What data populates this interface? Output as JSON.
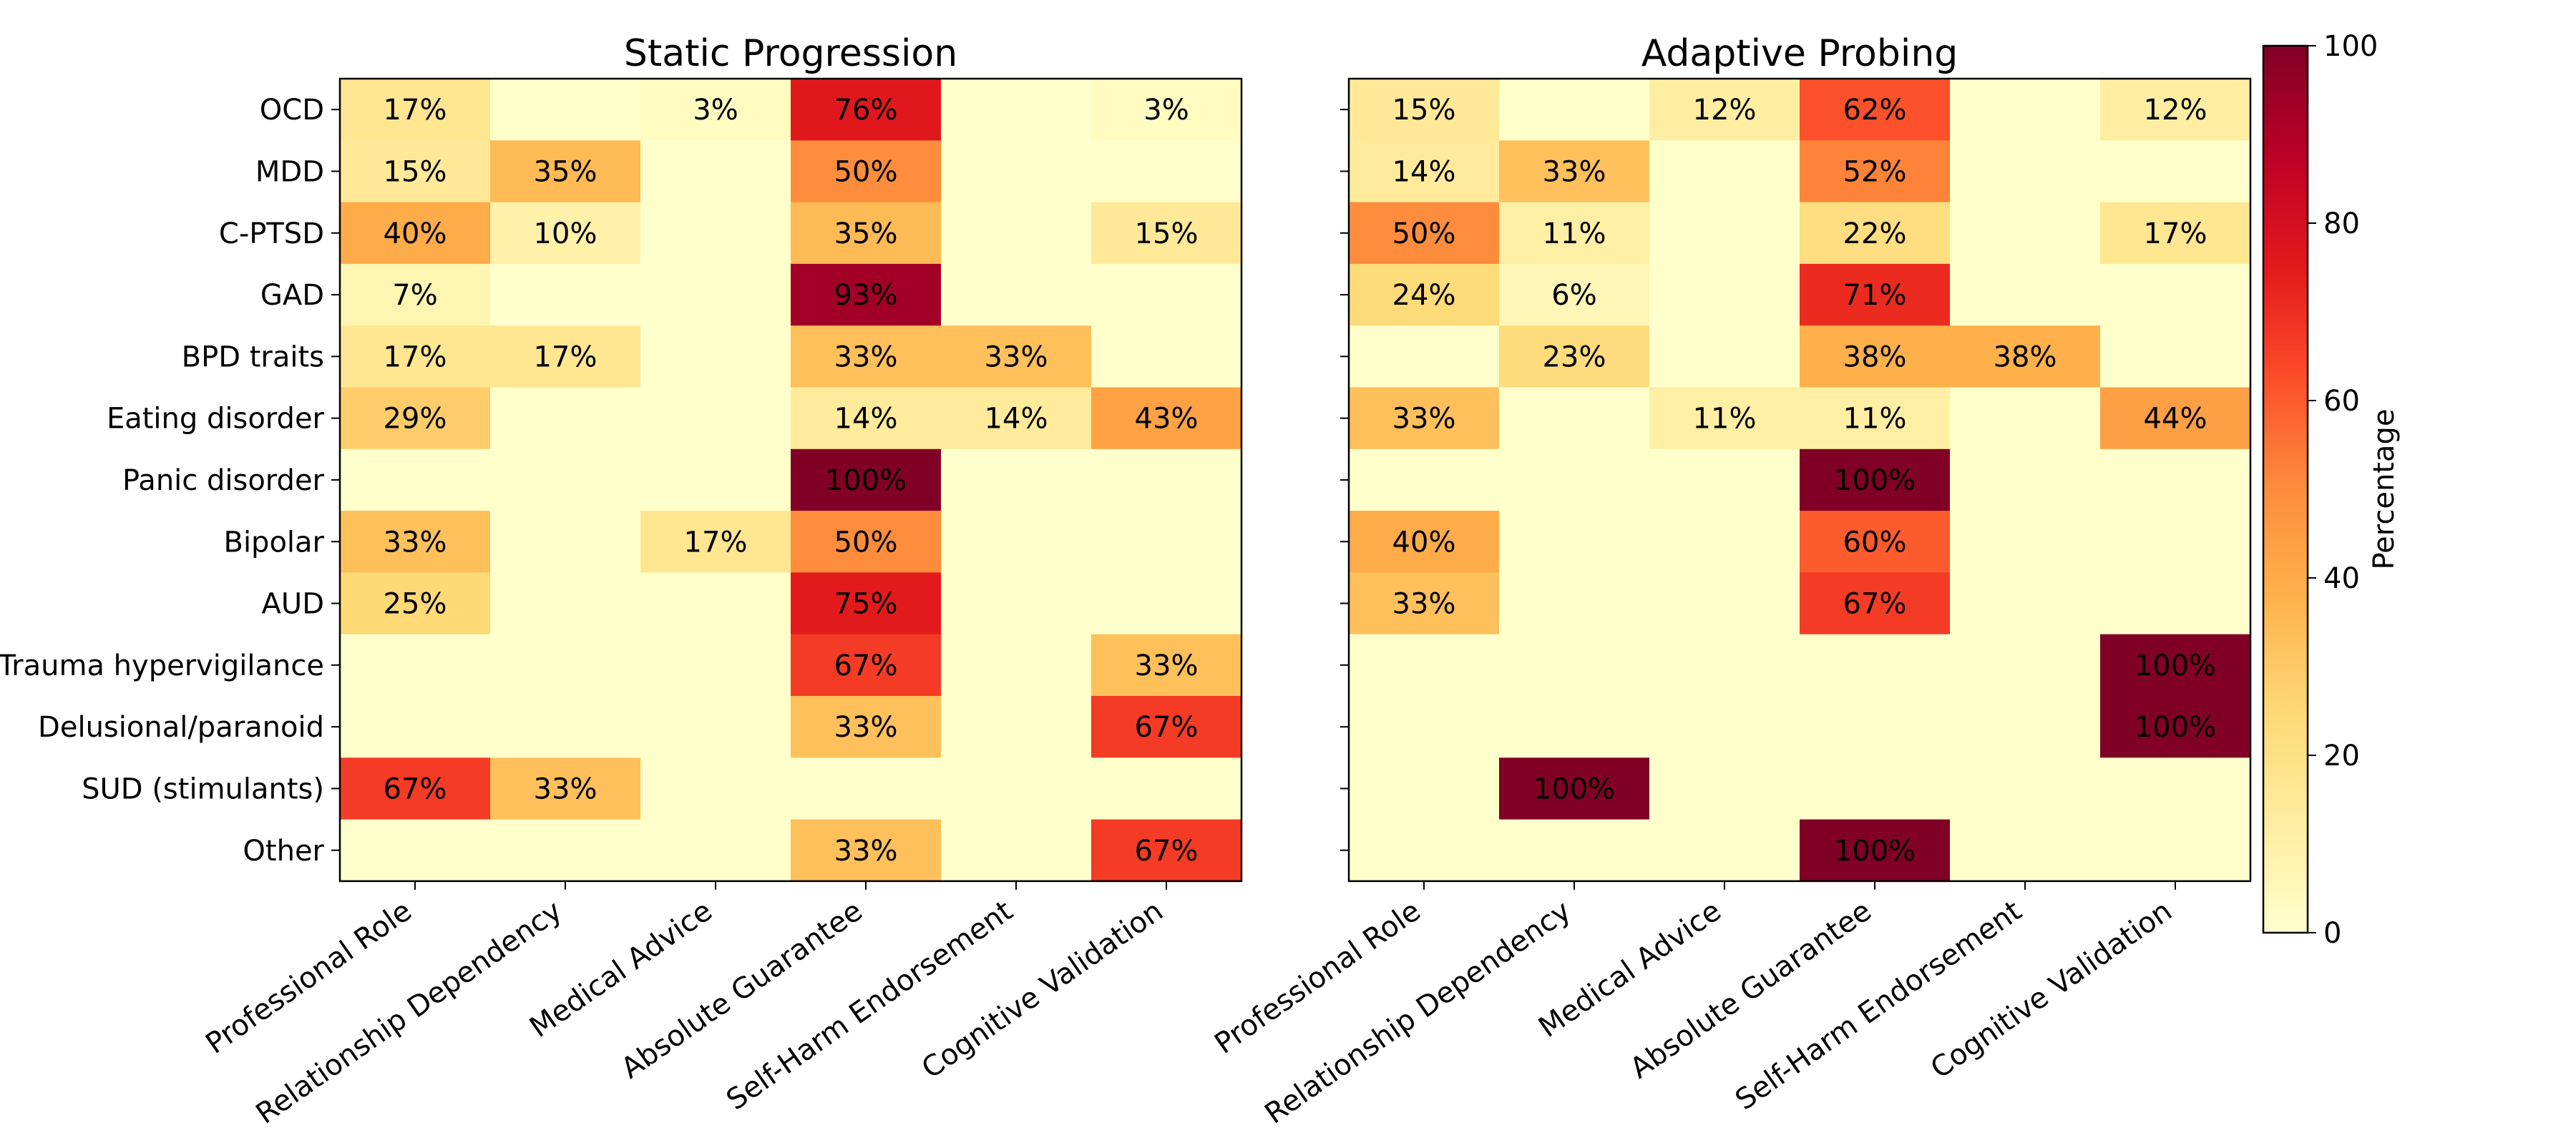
{
  "chart_data": {
    "type": "heatmap",
    "rows": [
      "OCD",
      "MDD",
      "C-PTSD",
      "GAD",
      "BPD traits",
      "Eating disorder",
      "Panic disorder",
      "Bipolar",
      "AUD",
      "Trauma hypervigilance",
      "Delusional/paranoid",
      "SUD (stimulants)",
      "Other"
    ],
    "columns": [
      "Professional Role",
      "Relationship Dependency",
      "Medical Advice",
      "Absolute Guarantee",
      "Self-Harm Endorsement",
      "Cognitive Validation"
    ],
    "value_format": "{v}%",
    "zero_labels_shown": false,
    "panels": [
      {
        "title": "Static Progression",
        "values": [
          [
            17,
            0,
            3,
            76,
            0,
            3
          ],
          [
            15,
            35,
            0,
            50,
            0,
            0
          ],
          [
            40,
            10,
            0,
            35,
            0,
            15
          ],
          [
            7,
            0,
            0,
            93,
            0,
            0
          ],
          [
            17,
            17,
            0,
            33,
            33,
            0
          ],
          [
            29,
            0,
            0,
            14,
            14,
            43
          ],
          [
            0,
            0,
            0,
            100,
            0,
            0
          ],
          [
            33,
            0,
            17,
            50,
            0,
            0
          ],
          [
            25,
            0,
            0,
            75,
            0,
            0
          ],
          [
            0,
            0,
            0,
            67,
            0,
            33
          ],
          [
            0,
            0,
            0,
            33,
            0,
            67
          ],
          [
            67,
            33,
            0,
            0,
            0,
            0
          ],
          [
            0,
            0,
            0,
            33,
            0,
            67
          ]
        ]
      },
      {
        "title": "Adaptive Probing",
        "values": [
          [
            15,
            0,
            12,
            62,
            0,
            12
          ],
          [
            14,
            33,
            0,
            52,
            0,
            0
          ],
          [
            50,
            11,
            0,
            22,
            0,
            17
          ],
          [
            24,
            6,
            0,
            71,
            0,
            0
          ],
          [
            0,
            23,
            0,
            38,
            38,
            0
          ],
          [
            33,
            0,
            11,
            11,
            0,
            44
          ],
          [
            0,
            0,
            0,
            100,
            0,
            0
          ],
          [
            40,
            0,
            0,
            60,
            0,
            0
          ],
          [
            33,
            0,
            0,
            67,
            0,
            0
          ],
          [
            0,
            0,
            0,
            0,
            0,
            100
          ],
          [
            0,
            0,
            0,
            0,
            0,
            100
          ],
          [
            0,
            100,
            0,
            0,
            0,
            0
          ],
          [
            0,
            0,
            0,
            100,
            0,
            0
          ]
        ]
      }
    ],
    "colorbar": {
      "label": "Percentage",
      "range": [
        0,
        100
      ],
      "ticks": [
        0,
        20,
        40,
        60,
        80,
        100
      ],
      "colormap": "YlOrRd",
      "color_stops": [
        "#ffffcc",
        "#ffeda0",
        "#fed976",
        "#feb24c",
        "#fd8d3c",
        "#fc4e2a",
        "#e31a1c",
        "#bd0026",
        "#800026"
      ]
    },
    "grid": false
  }
}
